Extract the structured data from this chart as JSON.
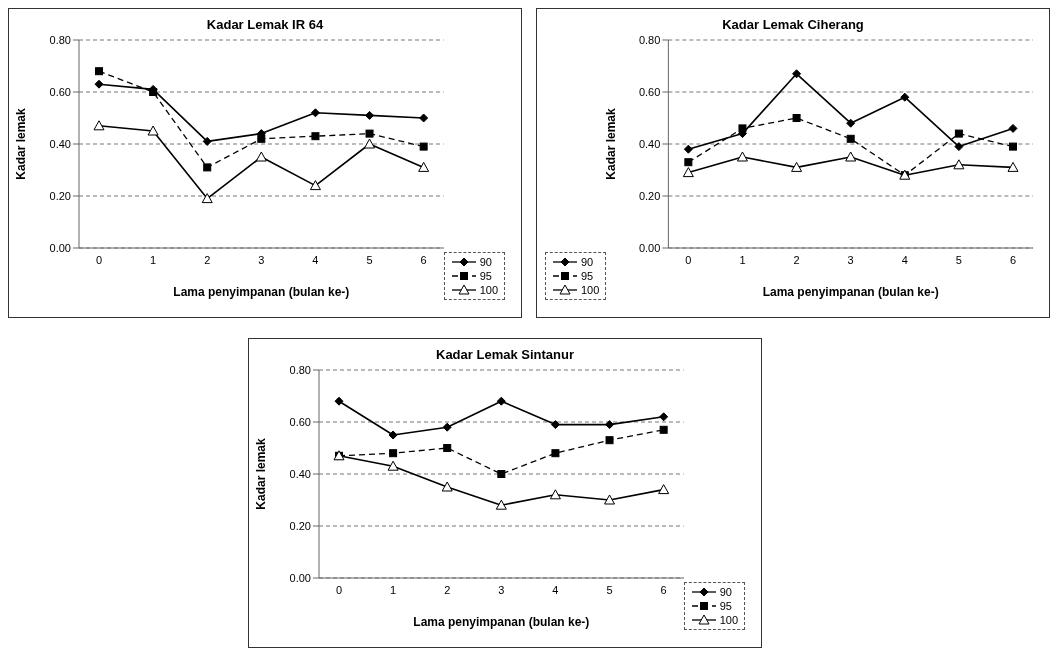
{
  "chart_data": [
    {
      "type": "line",
      "title": "Kadar Lemak IR 64",
      "xlabel": "Lama penyimpanan (bulan ke-)",
      "ylabel": "Kadar lemak",
      "categories": [
        "0",
        "1",
        "2",
        "3",
        "4",
        "5",
        "6"
      ],
      "ylim": [
        0,
        0.8
      ],
      "yticks": [
        {
          "value": 0,
          "label": "0.00"
        },
        {
          "value": 0.2,
          "label": "0.20"
        },
        {
          "value": 0.4,
          "label": "0.40"
        },
        {
          "value": 0.6,
          "label": "0.60"
        },
        {
          "value": 0.8,
          "label": "0.80"
        }
      ],
      "grid": "y",
      "legend": "bottom right",
      "series": [
        {
          "name": "90",
          "color": "#000000",
          "marker": "diamond",
          "line_style": "solid",
          "values": [
            0.63,
            0.61,
            0.41,
            0.44,
            0.52,
            0.51,
            0.5
          ]
        },
        {
          "name": "95",
          "color": "#000000",
          "marker": "square",
          "line_style": "dashed",
          "values": [
            0.68,
            0.6,
            0.31,
            0.42,
            0.43,
            0.44,
            0.39
          ]
        },
        {
          "name": "100",
          "color": "#000000",
          "marker": "triangle",
          "line_style": "solid",
          "values": [
            0.47,
            0.45,
            0.19,
            0.35,
            0.24,
            0.4,
            0.31
          ]
        }
      ]
    },
    {
      "type": "line",
      "title": "Kadar Lemak Ciherang",
      "xlabel": "Lama penyimpanan (bulan ke-)",
      "ylabel": "Kadar lemak",
      "categories": [
        "0",
        "1",
        "2",
        "3",
        "4",
        "5",
        "6"
      ],
      "ylim": [
        0,
        0.8
      ],
      "yticks": [
        {
          "value": 0,
          "label": "0.00"
        },
        {
          "value": 0.2,
          "label": "0.20"
        },
        {
          "value": 0.4,
          "label": "0.40"
        },
        {
          "value": 0.6,
          "label": "0.60"
        },
        {
          "value": 0.8,
          "label": "0.80"
        }
      ],
      "grid": "y",
      "legend": "bottom left",
      "series": [
        {
          "name": "90",
          "color": "#000000",
          "marker": "diamond",
          "line_style": "solid",
          "values": [
            0.38,
            0.44,
            0.67,
            0.48,
            0.58,
            0.39,
            0.46
          ]
        },
        {
          "name": "95",
          "color": "#000000",
          "marker": "square",
          "line_style": "dashed",
          "values": [
            0.33,
            0.46,
            0.5,
            0.42,
            0.28,
            0.44,
            0.39
          ]
        },
        {
          "name": "100",
          "color": "#000000",
          "marker": "triangle",
          "line_style": "solid",
          "values": [
            0.29,
            0.35,
            0.31,
            0.35,
            0.28,
            0.32,
            0.31
          ]
        }
      ]
    },
    {
      "type": "line",
      "title": "Kadar Lemak Sintanur",
      "xlabel": "Lama penyimpanan (bulan ke-)",
      "ylabel": "Kadar lemak",
      "categories": [
        "0",
        "1",
        "2",
        "3",
        "4",
        "5",
        "6"
      ],
      "ylim": [
        0,
        0.8
      ],
      "yticks": [
        {
          "value": 0,
          "label": "0.00"
        },
        {
          "value": 0.2,
          "label": "0.20"
        },
        {
          "value": 0.4,
          "label": "0.40"
        },
        {
          "value": 0.6,
          "label": "0.60"
        },
        {
          "value": 0.8,
          "label": "0.80"
        }
      ],
      "grid": "y",
      "legend": "bottom right",
      "series": [
        {
          "name": "90",
          "color": "#000000",
          "marker": "diamond",
          "line_style": "solid",
          "values": [
            0.68,
            0.55,
            0.58,
            0.68,
            0.59,
            0.59,
            0.62
          ]
        },
        {
          "name": "95",
          "color": "#000000",
          "marker": "square",
          "line_style": "dashed",
          "values": [
            0.47,
            0.48,
            0.5,
            0.4,
            0.48,
            0.53,
            0.57
          ]
        },
        {
          "name": "100",
          "color": "#000000",
          "marker": "triangle",
          "line_style": "solid",
          "values": [
            0.47,
            0.43,
            0.35,
            0.28,
            0.32,
            0.3,
            0.34
          ]
        }
      ]
    }
  ]
}
